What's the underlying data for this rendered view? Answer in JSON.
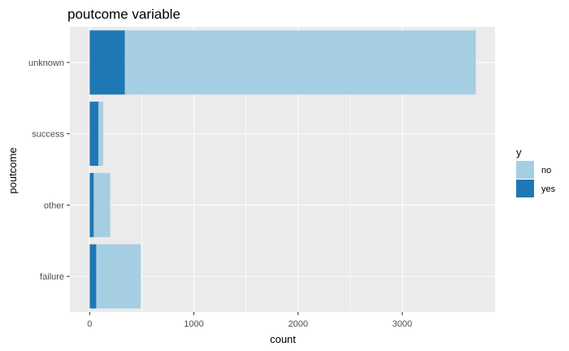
{
  "chart_data": {
    "type": "bar",
    "orientation": "horizontal",
    "stacked": true,
    "title": "poutcome variable",
    "xlabel": "count",
    "ylabel": "poutcome",
    "categories": [
      "unknown",
      "success",
      "other",
      "failure"
    ],
    "series": [
      {
        "name": "no",
        "color": "#a6cee3",
        "values": [
          3368,
          46,
          158,
          427
        ]
      },
      {
        "name": "yes",
        "color": "#1f78b4",
        "values": [
          337,
          83,
          39,
          63
        ]
      }
    ],
    "xlim": [
      -190,
      3890
    ],
    "xticks": [
      0,
      1000,
      2000,
      3000
    ],
    "grid": true,
    "legend": {
      "title": "y",
      "position": "right",
      "items": [
        "no",
        "yes"
      ]
    }
  }
}
